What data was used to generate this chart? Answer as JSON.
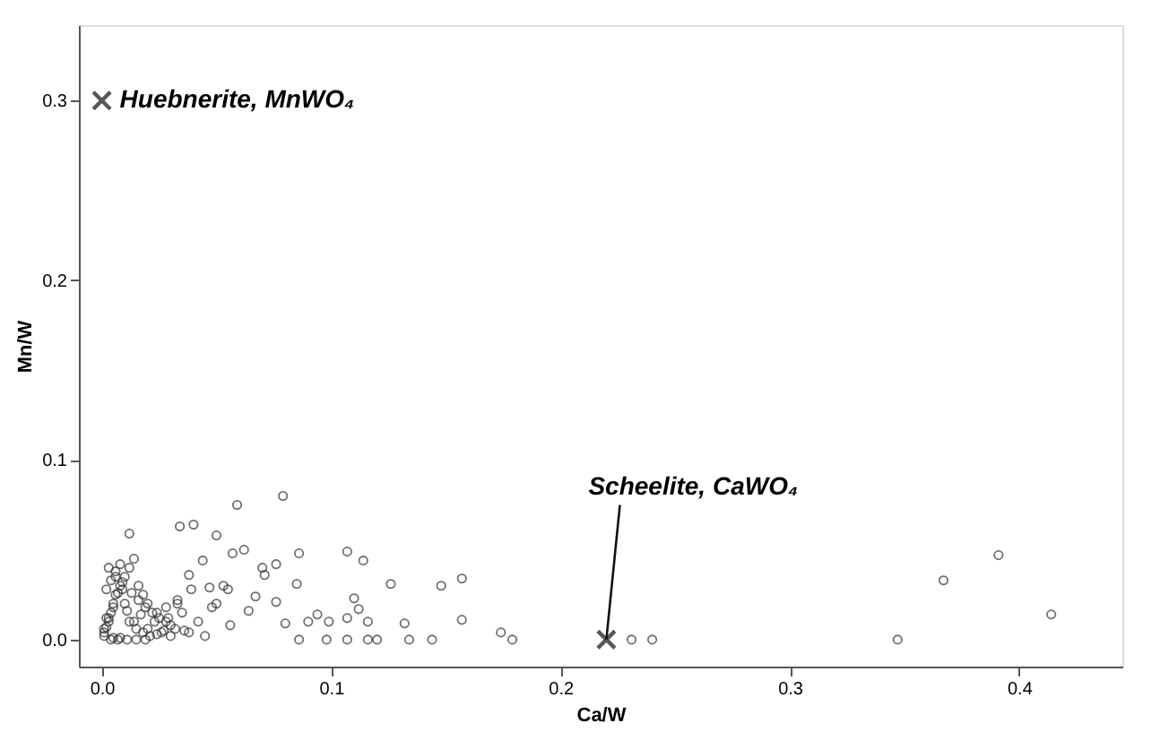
{
  "chart_data": {
    "type": "scatter",
    "xlabel": "Ca/W",
    "ylabel": "Mn/W",
    "xlim": [
      -0.01,
      0.445
    ],
    "ylim": [
      -0.015,
      0.342
    ],
    "xticks": [
      {
        "value": 0,
        "label": "0.0"
      },
      0.1,
      0.2,
      0.3,
      0.4
    ],
    "yticks": [
      {
        "value": 0,
        "label": "0.0"
      },
      0.1,
      0.2,
      0.3
    ],
    "grid": false,
    "series": [
      {
        "color": "#333333",
        "marker": "circle",
        "x": [
          0.059,
          0.079,
          0.034,
          0.04,
          0.012,
          0.05,
          0.057,
          0.086,
          0.107,
          0.114,
          0.076,
          0.071,
          0.085,
          0.126,
          0.148,
          0.067,
          0.076,
          0.11,
          0.112,
          0.094,
          0.099,
          0.107,
          0.116,
          0.132,
          0.08,
          0.056,
          0.064,
          0.055,
          0.047,
          0.053,
          0.039,
          0.086,
          0.098,
          0.107,
          0.116,
          0.12,
          0.134,
          0.144,
          0.157,
          0.157,
          0.174,
          0.179,
          0.231,
          0.24,
          0.347,
          0.367,
          0.391,
          0.414,
          0.002,
          0.003,
          0.004,
          0.005,
          0.006,
          0.008,
          0.01,
          0.012,
          0.014,
          0.016,
          0.018,
          0.02,
          0.022,
          0.025,
          0.028,
          0.03,
          0.033,
          0.036,
          0.002,
          0.004,
          0.006,
          0.008,
          0.01,
          0.012,
          0.015,
          0.018,
          0.021,
          0.024,
          0.027,
          0.03,
          0.003,
          0.005,
          0.007,
          0.009,
          0.011,
          0.014,
          0.017,
          0.02,
          0.023,
          0.026,
          0.029,
          0.032,
          0.035,
          0.038,
          0.042,
          0.045,
          0.048,
          0.001,
          0.003,
          0.006,
          0.009,
          0.013,
          0.016,
          0.019,
          0.024,
          0.028,
          0.033,
          0.038,
          0.044,
          0.05,
          0.062,
          0.07,
          0.09,
          0.001,
          0.004,
          0.007,
          0.011,
          0.015,
          0.019,
          0.001,
          0.002,
          0.005,
          0.008
        ],
        "values": [
          0.075,
          0.08,
          0.063,
          0.064,
          0.059,
          0.058,
          0.048,
          0.048,
          0.049,
          0.044,
          0.042,
          0.036,
          0.031,
          0.031,
          0.03,
          0.024,
          0.021,
          0.023,
          0.017,
          0.014,
          0.01,
          0.012,
          0.01,
          0.009,
          0.009,
          0.008,
          0.016,
          0.028,
          0.029,
          0.03,
          0.028,
          0,
          0,
          0,
          0,
          0,
          0,
          0,
          0.034,
          0.011,
          0.004,
          0,
          0,
          0,
          0,
          0.033,
          0.047,
          0.014,
          0.012,
          0.01,
          0.015,
          0.02,
          0.025,
          0.03,
          0.035,
          0.04,
          0.045,
          0.03,
          0.025,
          0.02,
          0.015,
          0.012,
          0.018,
          0.008,
          0.022,
          0.005,
          0.028,
          0.033,
          0.038,
          0.042,
          0.02,
          0.01,
          0.006,
          0.004,
          0.002,
          0.003,
          0.005,
          0.002,
          0.012,
          0.018,
          0.026,
          0.028,
          0.016,
          0.01,
          0.014,
          0.006,
          0.01,
          0.004,
          0.012,
          0.006,
          0.015,
          0.004,
          0.01,
          0.002,
          0.018,
          0.004,
          0.04,
          0.035,
          0.032,
          0.026,
          0.022,
          0.018,
          0.015,
          0.01,
          0.02,
          0.036,
          0.044,
          0.02,
          0.05,
          0.04,
          0.01,
          0.006,
          0,
          0,
          0,
          0,
          0,
          0.002,
          0.007,
          0.001,
          0.001
        ]
      },
      {
        "color": "#111111",
        "marker": "cross",
        "x": [
          0.0,
          0.22
        ],
        "values": [
          0.3,
          0.0
        ]
      }
    ],
    "annotations": [
      {
        "text": "Huebnerite, MnWO₄",
        "x": 0.0,
        "y": 0.3
      },
      {
        "text": "Scheelite, CaWO₄",
        "x": 0.22,
        "y": 0.0
      }
    ]
  }
}
